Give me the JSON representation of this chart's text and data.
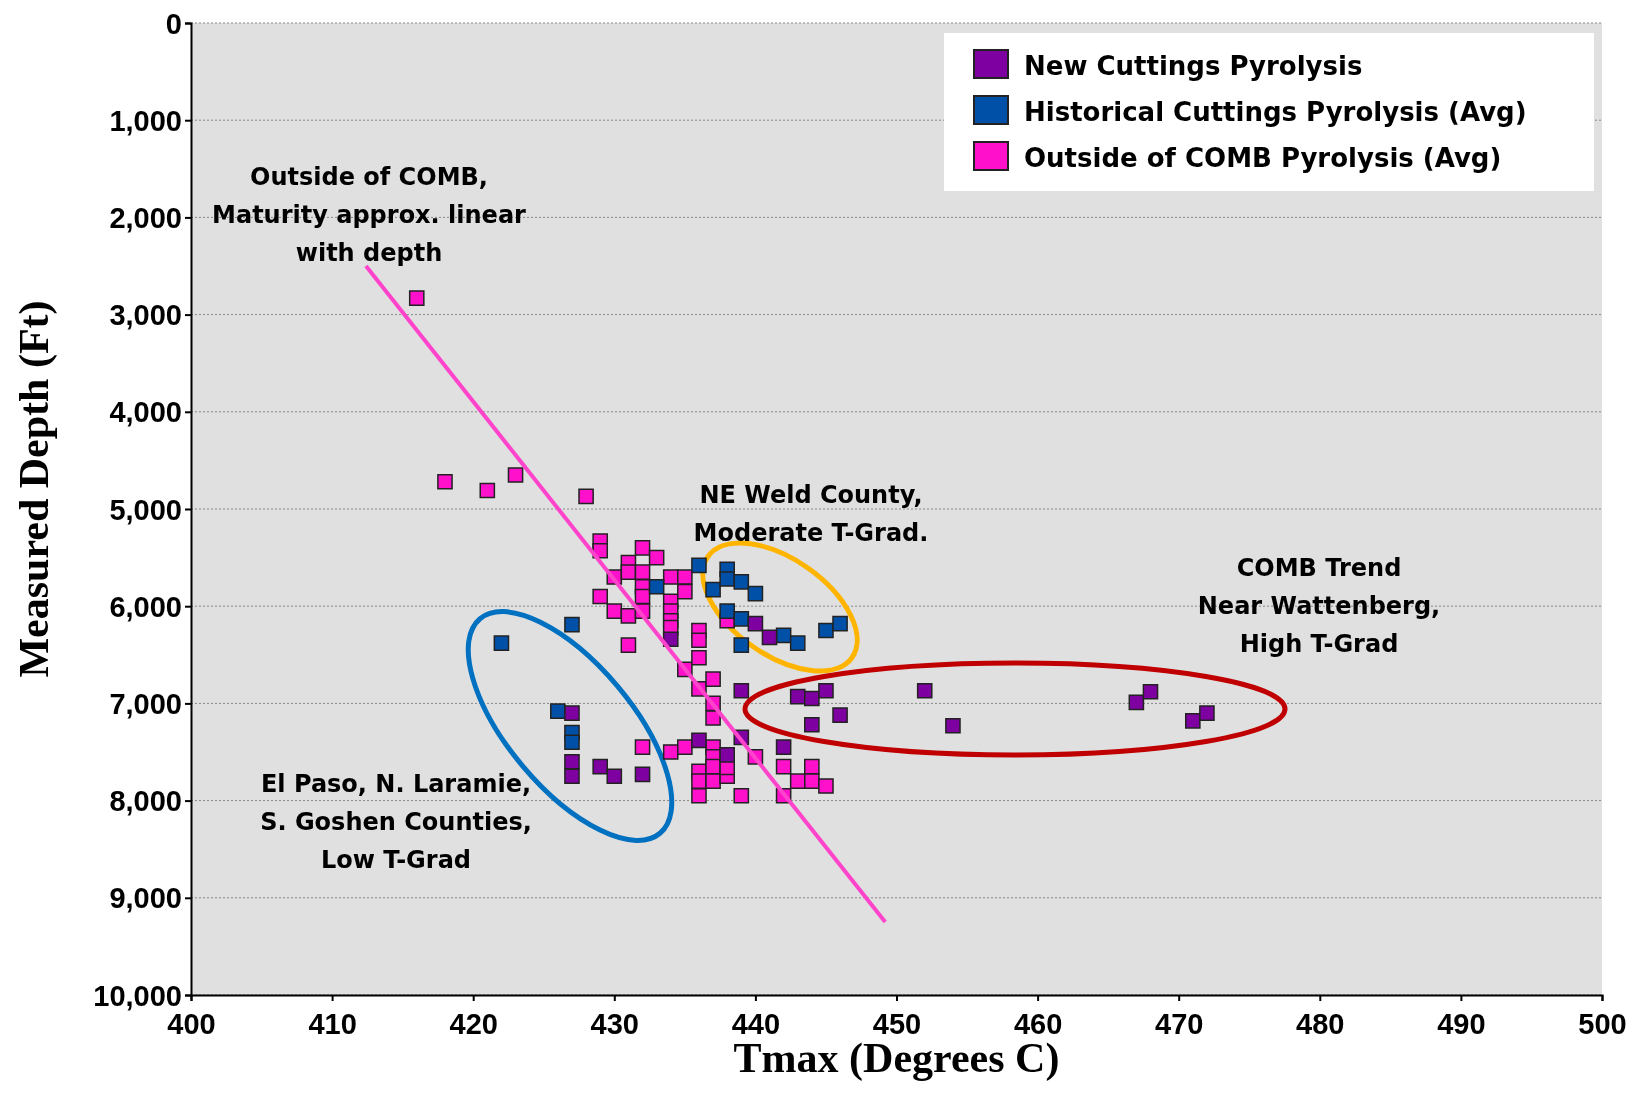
{
  "chart_data": {
    "type": "scatter",
    "xlabel": "Tmax (Degrees C)",
    "ylabel": "Measured Depth (Ft)",
    "xlim": [
      400,
      500
    ],
    "xticks": [
      400,
      410,
      420,
      430,
      440,
      450,
      460,
      470,
      480,
      490,
      500
    ],
    "ylim": [
      10000,
      0
    ],
    "yticks": [
      0,
      {
        "value": 1000,
        "label": "1,000"
      },
      {
        "value": 2000,
        "label": "2,000"
      },
      {
        "value": 3000,
        "label": "3,000"
      },
      {
        "value": 4000,
        "label": "4,000"
      },
      {
        "value": 5000,
        "label": "5,000"
      },
      {
        "value": 6000,
        "label": "6,000"
      },
      {
        "value": 7000,
        "label": "7,000"
      },
      {
        "value": 8000,
        "label": "8,000"
      },
      {
        "value": 9000,
        "label": "9,000"
      },
      {
        "value": 10000,
        "label": "10,000"
      }
    ],
    "grid": "y",
    "legend": "top right",
    "marker": "square",
    "series": [
      {
        "name": "Outside of COMB Pyrolysis (Avg)",
        "color": "#ff11cc",
        "x": [
          416,
          418,
          421,
          423,
          428,
          429,
          429,
          429,
          430,
          430,
          431,
          431,
          431,
          431,
          432,
          432,
          432,
          432,
          432,
          433,
          434,
          434,
          434,
          434,
          434,
          435,
          435,
          435,
          436,
          436,
          436,
          436,
          437,
          437,
          437,
          436,
          436,
          436,
          437,
          437,
          437,
          437,
          438,
          438,
          438,
          439,
          440,
          432,
          434,
          435,
          442,
          442,
          443,
          444,
          444,
          445
        ],
        "values": [
          2830,
          4720,
          4810,
          4650,
          4870,
          5330,
          5430,
          5900,
          5700,
          6050,
          5550,
          5650,
          6100,
          6400,
          5400,
          5650,
          5800,
          5900,
          6050,
          5500,
          5700,
          5950,
          6050,
          6150,
          6220,
          5700,
          5850,
          6650,
          6250,
          6350,
          6530,
          6850,
          6750,
          7000,
          7150,
          7700,
          7800,
          7950,
          7450,
          7550,
          7650,
          7800,
          7750,
          7660,
          6150,
          7950,
          7550,
          7450,
          7500,
          7450,
          7650,
          7950,
          7800,
          7650,
          7800,
          7850
        ]
      },
      {
        "name": "Historical Cuttings Pyrolysis (Avg)",
        "color": "#0050a8",
        "x": [
          422,
          426,
          427,
          427,
          427,
          433,
          436,
          437,
          438,
          438,
          439,
          440,
          438,
          439,
          439,
          442,
          443,
          445,
          446
        ],
        "values": [
          6380,
          7080,
          6190,
          7300,
          7400,
          5800,
          5580,
          5830,
          5620,
          5720,
          5750,
          5870,
          6050,
          6130,
          6400,
          6300,
          6380,
          6250,
          6180
        ]
      },
      {
        "name": "New Cuttings Pyrolysis",
        "color": "#7f00a0",
        "x": [
          427,
          427,
          427,
          429,
          430,
          432,
          434,
          436,
          438,
          439,
          440,
          441,
          439,
          442,
          443,
          444,
          445,
          444,
          446,
          452,
          454,
          467,
          468,
          471,
          472
        ],
        "values": [
          7100,
          7600,
          7750,
          7650,
          7750,
          7730,
          6340,
          7380,
          7530,
          6870,
          6180,
          6320,
          7350,
          7450,
          6930,
          6950,
          6870,
          7220,
          7120,
          6870,
          7230,
          6990,
          6880,
          7180,
          7100
        ]
      },
      {
        "type": "line",
        "marker": "none",
        "color": "#ff44cc",
        "x": [
          412.4,
          449.2
        ],
        "values": [
          2500,
          9250
        ]
      }
    ],
    "annotations": [
      "Outside of COMB,\nMaturity approx. linear\nwith depth",
      "NE Weld County,\nModerate T-Grad.",
      "COMB Trend\nNear Wattenberg,\nHigh T-Grad",
      "El Paso, N. Laramie,\nS. Goshen Counties,\nLow T-Grad"
    ]
  }
}
